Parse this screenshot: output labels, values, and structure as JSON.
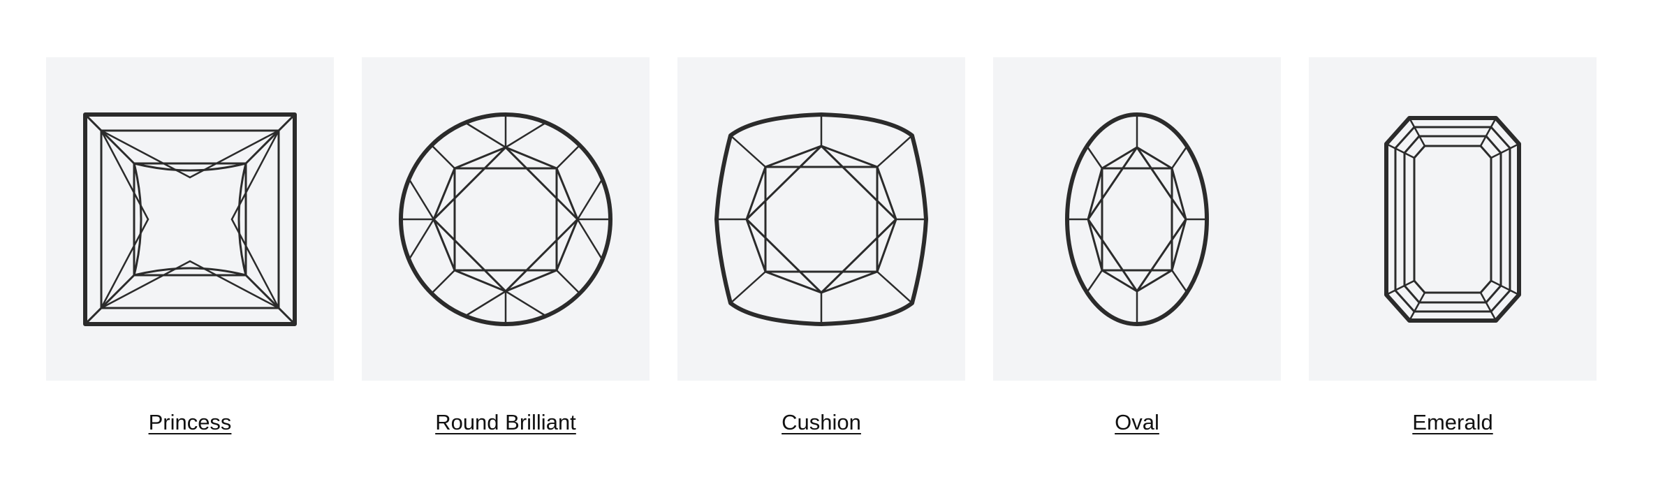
{
  "theme": {
    "card_background": "#f3f4f6",
    "line_color": "#2b2b2b",
    "label_color": "#111111"
  },
  "shapes": [
    {
      "label": "Princess",
      "icon": "princess-cut-diamond-icon"
    },
    {
      "label": "Round Brilliant",
      "icon": "round-brilliant-cut-diamond-icon"
    },
    {
      "label": "Cushion",
      "icon": "cushion-cut-diamond-icon"
    },
    {
      "label": "Oval",
      "icon": "oval-cut-diamond-icon"
    },
    {
      "label": "Emerald",
      "icon": "emerald-cut-diamond-icon"
    }
  ]
}
